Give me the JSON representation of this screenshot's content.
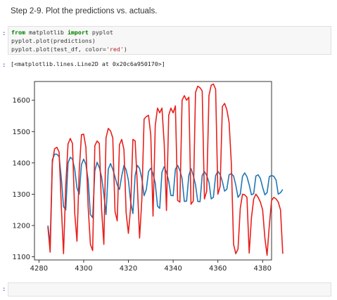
{
  "step_title": "Step 2-9. Plot the predictions vs. actuals.",
  "code_cell": {
    "prompt": ":",
    "lines": [
      [
        {
          "t": "from",
          "c": "kw"
        },
        {
          "t": " matplotlib ",
          "c": ""
        },
        {
          "t": "import",
          "c": "kw"
        },
        {
          "t": " pyplot",
          "c": ""
        }
      ],
      [
        {
          "t": "pyplot.plot(predictions)",
          "c": ""
        }
      ],
      [
        {
          "t": "pyplot.plot(test_df, color=",
          "c": ""
        },
        {
          "t": "'red'",
          "c": "str"
        },
        {
          "t": ")",
          "c": ""
        }
      ]
    ]
  },
  "output": {
    "prompt": ":",
    "text": "[<matplotlib.lines.Line2D at 0x20c6a950170>]"
  },
  "empty_cell": {
    "prompt": ":"
  },
  "chart_data": {
    "type": "line",
    "x_ticks": [
      4280,
      4300,
      4320,
      4340,
      4360,
      4380
    ],
    "y_ticks": [
      1100,
      1200,
      1300,
      1400,
      1500,
      1600
    ],
    "xlim": [
      4278,
      4384
    ],
    "ylim": [
      1090,
      1660
    ],
    "grid": false,
    "series": [
      {
        "color": "#1f77b4",
        "x_start": 4284,
        "values": [
          1200,
          1140,
          1410,
          1428,
          1428,
          1420,
          1350,
          1260,
          1250,
          1400,
          1418,
          1412,
          1380,
          1320,
          1300,
          1395,
          1412,
          1395,
          1345,
          1235,
          1225,
          1375,
          1402,
          1385,
          1355,
          1300,
          1235,
          1380,
          1398,
          1380,
          1355,
          1330,
          1315,
          1358,
          1392,
          1378,
          1345,
          1275,
          1238,
          1360,
          1392,
          1382,
          1350,
          1295,
          1315,
          1372,
          1383,
          1365,
          1335,
          1262,
          1255,
          1370,
          1388,
          1370,
          1342,
          1296,
          1295,
          1380,
          1392,
          1376,
          1350,
          1277,
          1278,
          1360,
          1382,
          1360,
          1330,
          1277,
          1276,
          1360,
          1372,
          1360,
          1338,
          1285,
          1290,
          1360,
          1373,
          1363,
          1340,
          1310,
          1316,
          1362,
          1366,
          1358,
          1330,
          1290,
          1300,
          1357,
          1368,
          1356,
          1330,
          1298,
          1302,
          1358,
          1362,
          1350,
          1322,
          1298,
          1305,
          1356,
          1360,
          1357,
          1345,
          1300,
          1305,
          1315
        ]
      },
      {
        "color": "#e8201c",
        "x_start": 4284,
        "values": [
          1195,
          1115,
          1400,
          1445,
          1450,
          1435,
          1260,
          1110,
          1330,
          1460,
          1478,
          1462,
          1240,
          1150,
          1375,
          1490,
          1492,
          1450,
          1260,
          1140,
          1120,
          1455,
          1470,
          1462,
          1252,
          1140,
          1480,
          1510,
          1502,
          1480,
          1245,
          1215,
          1458,
          1475,
          1442,
          1240,
          1175,
          1258,
          1475,
          1470,
          1330,
          1160,
          1282,
          1540,
          1548,
          1552,
          1490,
          1230,
          1520,
          1575,
          1560,
          1575,
          1462,
          1248,
          1552,
          1575,
          1560,
          1582,
          1280,
          1275,
          1600,
          1615,
          1600,
          1610,
          1268,
          1278,
          1625,
          1645,
          1640,
          1630,
          1285,
          1310,
          1615,
          1648,
          1652,
          1635,
          1300,
          1325,
          1580,
          1590,
          1570,
          1530,
          1400,
          1140,
          1110,
          1125,
          1255,
          1300,
          1298,
          1290,
          1112,
          1225,
          1285,
          1300,
          1290,
          1275,
          1250,
          1160,
          1105,
          1200,
          1280,
          1290,
          1285,
          1275,
          1250,
          1110
        ]
      }
    ]
  }
}
